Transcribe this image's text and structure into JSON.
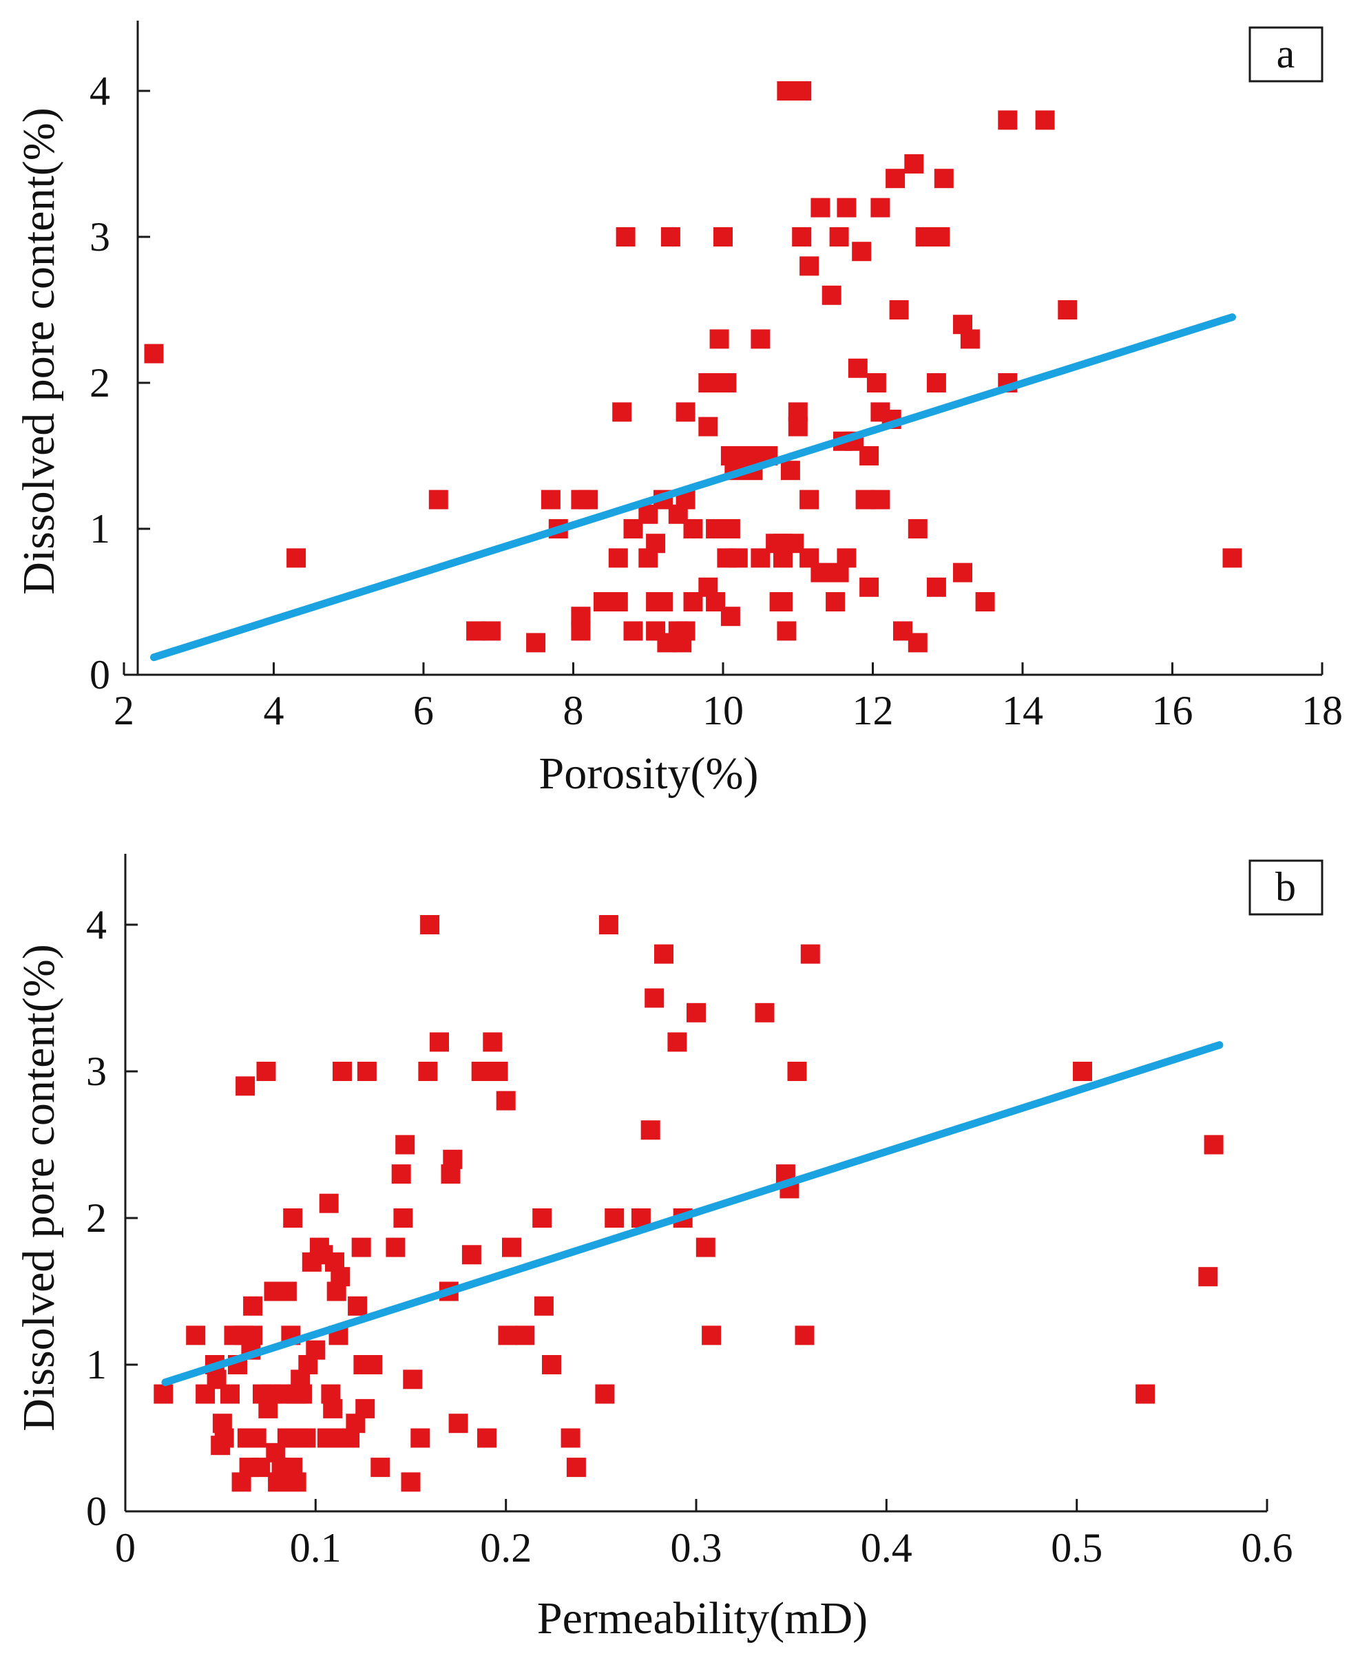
{
  "colors": {
    "marker": "#e0161b",
    "fit_line": "#1aa3e0",
    "axis": "#1a1a1a"
  },
  "chart_data": [
    {
      "type": "scatter",
      "panel_label": "a",
      "xlabel": "Porosity(%)",
      "ylabel": "Dissolved pore content(%)",
      "xlim": [
        2,
        18
      ],
      "ylim": [
        0,
        4.5
      ],
      "xticks": [
        2,
        4,
        6,
        8,
        10,
        12,
        14,
        16,
        18
      ],
      "yticks": [
        0,
        1,
        2,
        3,
        4
      ],
      "xtick_labels": [
        "2",
        "4",
        "6",
        "8",
        "10",
        "12",
        "14",
        "16",
        "18"
      ],
      "ytick_labels": [
        "0",
        "1",
        "2",
        "3",
        "4"
      ],
      "fit_line": {
        "x": [
          2.4,
          16.8
        ],
        "y": [
          0.12,
          2.45
        ]
      },
      "points": [
        [
          2.4,
          2.2
        ],
        [
          4.3,
          0.8
        ],
        [
          6.2,
          1.2
        ],
        [
          6.7,
          0.3
        ],
        [
          6.9,
          0.3
        ],
        [
          7.5,
          0.22
        ],
        [
          7.7,
          1.2
        ],
        [
          7.8,
          1.0
        ],
        [
          8.1,
          0.4
        ],
        [
          8.1,
          0.3
        ],
        [
          8.1,
          1.2
        ],
        [
          8.2,
          1.2
        ],
        [
          8.4,
          0.5
        ],
        [
          8.5,
          0.5
        ],
        [
          8.6,
          0.5
        ],
        [
          8.6,
          0.8
        ],
        [
          8.65,
          1.8
        ],
        [
          8.7,
          3.0
        ],
        [
          8.8,
          0.3
        ],
        [
          8.8,
          1.0
        ],
        [
          9.0,
          0.8
        ],
        [
          9.0,
          1.1
        ],
        [
          9.1,
          0.5
        ],
        [
          9.1,
          0.9
        ],
        [
          9.1,
          0.3
        ],
        [
          9.2,
          0.5
        ],
        [
          9.2,
          1.2
        ],
        [
          9.25,
          0.22
        ],
        [
          9.3,
          3.0
        ],
        [
          9.4,
          0.3
        ],
        [
          9.4,
          1.1
        ],
        [
          9.45,
          0.22
        ],
        [
          9.5,
          1.8
        ],
        [
          9.5,
          0.3
        ],
        [
          9.5,
          1.2
        ],
        [
          9.6,
          0.5
        ],
        [
          9.6,
          1.0
        ],
        [
          9.8,
          0.6
        ],
        [
          9.8,
          1.7
        ],
        [
          9.8,
          2.0
        ],
        [
          9.9,
          1.0
        ],
        [
          9.9,
          0.5
        ],
        [
          9.95,
          2.3
        ],
        [
          10.0,
          3.0
        ],
        [
          10.05,
          2.0
        ],
        [
          10.05,
          0.8
        ],
        [
          10.1,
          0.4
        ],
        [
          10.1,
          1.0
        ],
        [
          10.1,
          1.5
        ],
        [
          10.15,
          1.4
        ],
        [
          10.2,
          0.8
        ],
        [
          10.3,
          1.5
        ],
        [
          10.35,
          1.5
        ],
        [
          10.4,
          1.4
        ],
        [
          10.5,
          2.3
        ],
        [
          10.5,
          0.8
        ],
        [
          10.6,
          1.5
        ],
        [
          10.7,
          0.9
        ],
        [
          10.75,
          0.5
        ],
        [
          10.8,
          0.9
        ],
        [
          10.8,
          0.5
        ],
        [
          10.8,
          0.8
        ],
        [
          10.85,
          0.3
        ],
        [
          10.85,
          4.0
        ],
        [
          10.9,
          1.4
        ],
        [
          10.95,
          0.9
        ],
        [
          11.0,
          1.7
        ],
        [
          11.0,
          1.8
        ],
        [
          11.05,
          3.0
        ],
        [
          11.05,
          4.0
        ],
        [
          11.15,
          0.8
        ],
        [
          11.15,
          2.8
        ],
        [
          11.15,
          1.2
        ],
        [
          11.3,
          0.7
        ],
        [
          11.3,
          3.2
        ],
        [
          11.45,
          2.6
        ],
        [
          11.5,
          0.5
        ],
        [
          11.55,
          3.0
        ],
        [
          11.55,
          0.7
        ],
        [
          11.6,
          1.6
        ],
        [
          11.65,
          3.2
        ],
        [
          11.65,
          0.8
        ],
        [
          11.75,
          1.6
        ],
        [
          11.8,
          2.1
        ],
        [
          11.85,
          2.9
        ],
        [
          11.9,
          1.2
        ],
        [
          11.95,
          1.5
        ],
        [
          11.95,
          0.6
        ],
        [
          12.05,
          2.0
        ],
        [
          12.1,
          1.8
        ],
        [
          12.1,
          1.2
        ],
        [
          12.1,
          3.2
        ],
        [
          12.25,
          1.75
        ],
        [
          12.3,
          3.4
        ],
        [
          12.35,
          2.5
        ],
        [
          12.4,
          0.3
        ],
        [
          12.55,
          3.5
        ],
        [
          12.6,
          1.0
        ],
        [
          12.6,
          0.22
        ],
        [
          12.7,
          3.0
        ],
        [
          12.8,
          3.0
        ],
        [
          12.85,
          2.0
        ],
        [
          12.85,
          0.6
        ],
        [
          12.9,
          3.0
        ],
        [
          12.95,
          3.4
        ],
        [
          13.2,
          2.4
        ],
        [
          13.2,
          0.7
        ],
        [
          13.3,
          2.3
        ],
        [
          13.5,
          0.5
        ],
        [
          13.8,
          3.8
        ],
        [
          13.8,
          2.0
        ],
        [
          14.3,
          3.8
        ],
        [
          14.6,
          2.5
        ],
        [
          16.8,
          0.8
        ]
      ]
    },
    {
      "type": "scatter",
      "panel_label": "b",
      "xlabel": "Permeability(mD)",
      "ylabel": "Dissolved pore content(%)",
      "xlim": [
        0,
        0.6
      ],
      "ylim": [
        0,
        4.5
      ],
      "xticks": [
        0,
        0.1,
        0.2,
        0.3,
        0.4,
        0.5,
        0.6
      ],
      "yticks": [
        0,
        1,
        2,
        3,
        4
      ],
      "xtick_labels": [
        "0",
        "0.1",
        "0.2",
        "0.3",
        "0.4",
        "0.5",
        "0.6"
      ],
      "ytick_labels": [
        "0",
        "1",
        "2",
        "3",
        "4"
      ],
      "fit_line": {
        "x": [
          0.021,
          0.575
        ],
        "y": [
          0.88,
          3.18
        ]
      },
      "points": [
        [
          0.02,
          0.8
        ],
        [
          0.037,
          1.2
        ],
        [
          0.042,
          0.8
        ],
        [
          0.047,
          1.0
        ],
        [
          0.048,
          0.9
        ],
        [
          0.05,
          0.45
        ],
        [
          0.051,
          0.6
        ],
        [
          0.052,
          0.5
        ],
        [
          0.055,
          0.8
        ],
        [
          0.057,
          1.2
        ],
        [
          0.059,
          1.0
        ],
        [
          0.061,
          0.2
        ],
        [
          0.062,
          1.2
        ],
        [
          0.063,
          2.9
        ],
        [
          0.064,
          0.5
        ],
        [
          0.065,
          0.3
        ],
        [
          0.066,
          1.1
        ],
        [
          0.067,
          1.2
        ],
        [
          0.067,
          1.4
        ],
        [
          0.069,
          0.5
        ],
        [
          0.071,
          0.3
        ],
        [
          0.072,
          0.8
        ],
        [
          0.074,
          3.0
        ],
        [
          0.075,
          0.7
        ],
        [
          0.077,
          0.8
        ],
        [
          0.078,
          1.5
        ],
        [
          0.079,
          0.4
        ],
        [
          0.08,
          0.2
        ],
        [
          0.082,
          0.3
        ],
        [
          0.083,
          0.8
        ],
        [
          0.085,
          1.5
        ],
        [
          0.085,
          0.5
        ],
        [
          0.087,
          1.2
        ],
        [
          0.088,
          2.0
        ],
        [
          0.088,
          0.3
        ],
        [
          0.09,
          0.2
        ],
        [
          0.09,
          0.8
        ],
        [
          0.092,
          0.9
        ],
        [
          0.093,
          0.8
        ],
        [
          0.095,
          0.5
        ],
        [
          0.096,
          1.0
        ],
        [
          0.098,
          1.7
        ],
        [
          0.1,
          1.1
        ],
        [
          0.102,
          1.8
        ],
        [
          0.104,
          1.75
        ],
        [
          0.106,
          0.5
        ],
        [
          0.107,
          2.1
        ],
        [
          0.108,
          0.8
        ],
        [
          0.109,
          0.7
        ],
        [
          0.11,
          1.7
        ],
        [
          0.111,
          1.5
        ],
        [
          0.112,
          1.2
        ],
        [
          0.113,
          1.6
        ],
        [
          0.114,
          3.0
        ],
        [
          0.115,
          0.5
        ],
        [
          0.118,
          0.5
        ],
        [
          0.121,
          0.6
        ],
        [
          0.122,
          1.4
        ],
        [
          0.124,
          1.8
        ],
        [
          0.125,
          1.0
        ],
        [
          0.126,
          0.7
        ],
        [
          0.127,
          3.0
        ],
        [
          0.13,
          1.0
        ],
        [
          0.134,
          0.3
        ],
        [
          0.142,
          1.8
        ],
        [
          0.145,
          2.3
        ],
        [
          0.146,
          2.0
        ],
        [
          0.147,
          2.5
        ],
        [
          0.15,
          0.2
        ],
        [
          0.151,
          0.9
        ],
        [
          0.155,
          0.5
        ],
        [
          0.159,
          3.0
        ],
        [
          0.16,
          4.0
        ],
        [
          0.165,
          3.2
        ],
        [
          0.17,
          1.5
        ],
        [
          0.171,
          2.3
        ],
        [
          0.172,
          2.4
        ],
        [
          0.175,
          0.6
        ],
        [
          0.182,
          1.75
        ],
        [
          0.187,
          3.0
        ],
        [
          0.19,
          0.5
        ],
        [
          0.193,
          3.2
        ],
        [
          0.196,
          3.0
        ],
        [
          0.2,
          2.8
        ],
        [
          0.201,
          1.2
        ],
        [
          0.203,
          1.8
        ],
        [
          0.21,
          1.2
        ],
        [
          0.219,
          2.0
        ],
        [
          0.22,
          1.4
        ],
        [
          0.224,
          1.0
        ],
        [
          0.234,
          0.5
        ],
        [
          0.237,
          0.3
        ],
        [
          0.252,
          0.8
        ],
        [
          0.254,
          4.0
        ],
        [
          0.257,
          2.0
        ],
        [
          0.271,
          2.0
        ],
        [
          0.276,
          2.6
        ],
        [
          0.278,
          3.5
        ],
        [
          0.283,
          3.8
        ],
        [
          0.29,
          3.2
        ],
        [
          0.293,
          2.0
        ],
        [
          0.3,
          3.4
        ],
        [
          0.305,
          1.8
        ],
        [
          0.308,
          1.2
        ],
        [
          0.336,
          3.4
        ],
        [
          0.347,
          2.3
        ],
        [
          0.349,
          2.2
        ],
        [
          0.353,
          3.0
        ],
        [
          0.357,
          1.2
        ],
        [
          0.36,
          3.8
        ],
        [
          0.503,
          3.0
        ],
        [
          0.536,
          0.8
        ],
        [
          0.569,
          1.6
        ],
        [
          0.572,
          2.5
        ]
      ]
    }
  ]
}
